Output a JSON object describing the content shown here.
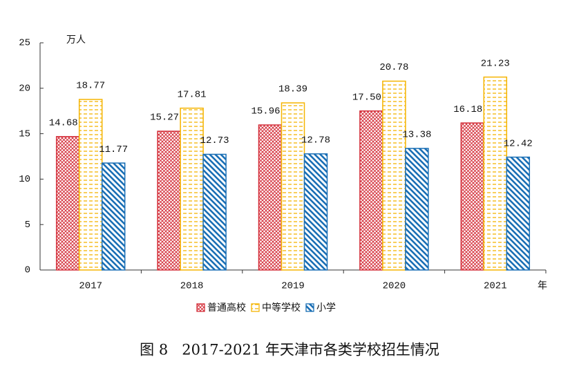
{
  "chart_data": {
    "type": "bar",
    "title": "图 8   2017-2021 年天津市各类学校招生情况",
    "y_label": "万人",
    "x_label": "年",
    "categories": [
      "2017",
      "2018",
      "2019",
      "2020",
      "2021"
    ],
    "series": [
      {
        "name": "普通高校",
        "color": "#d42f3a",
        "pattern": "crosshatch",
        "values": [
          14.68,
          15.27,
          15.96,
          17.5,
          16.18
        ],
        "value_labels": [
          "14.68",
          "15.27",
          "15.96",
          "17.50",
          "16.18"
        ]
      },
      {
        "name": "中等学校",
        "color": "#f5b400",
        "pattern": "dash",
        "values": [
          18.77,
          17.81,
          18.39,
          20.78,
          21.23
        ],
        "value_labels": [
          "18.77",
          "17.81",
          "18.39",
          "20.78",
          "21.23"
        ]
      },
      {
        "name": "小学",
        "color": "#1a6fb5",
        "pattern": "diagonal",
        "values": [
          11.77,
          12.73,
          12.78,
          13.38,
          12.42
        ],
        "value_labels": [
          "11.77",
          "12.73",
          "12.78",
          "13.38",
          "12.42"
        ]
      }
    ],
    "ylim": [
      0,
      25
    ],
    "yticks": [
      0,
      5,
      10,
      15,
      20,
      25
    ],
    "legend": "bottom"
  }
}
